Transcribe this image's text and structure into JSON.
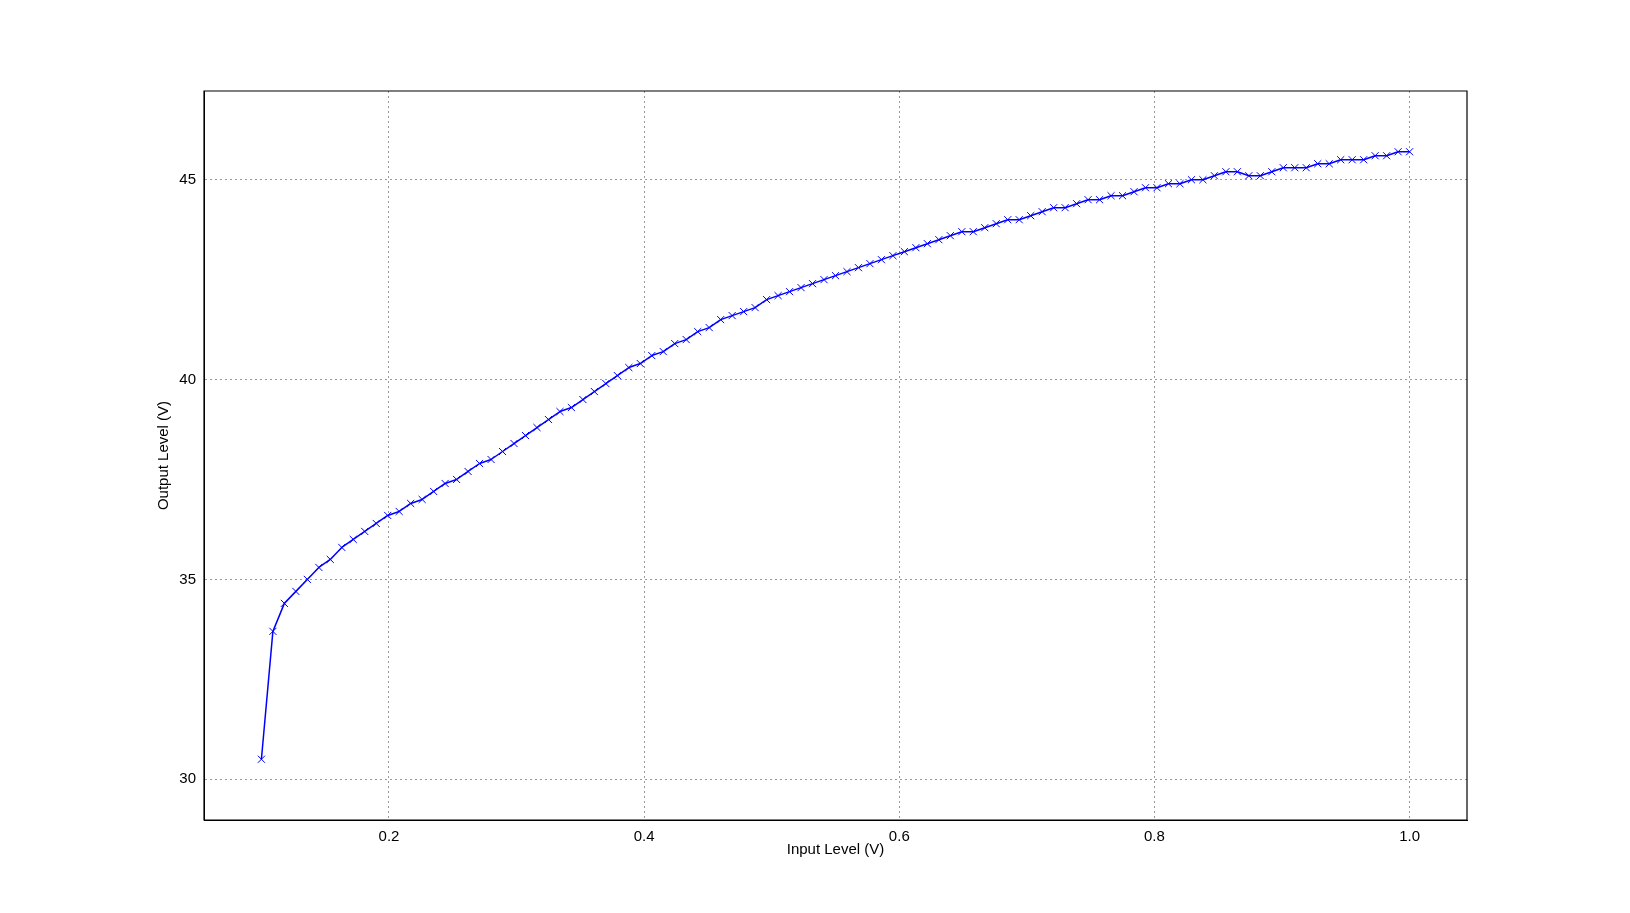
{
  "chart_data": {
    "type": "line",
    "xlabel": "Input Level (V)",
    "ylabel": "Output Level (V)",
    "x": [
      0.1,
      0.109,
      0.118,
      0.127,
      0.136,
      0.145,
      0.154,
      0.163,
      0.172,
      0.181,
      0.19,
      0.199,
      0.208,
      0.217,
      0.226,
      0.235,
      0.244,
      0.253,
      0.262,
      0.271,
      0.28,
      0.289,
      0.298,
      0.307,
      0.316,
      0.325,
      0.334,
      0.343,
      0.352,
      0.361,
      0.37,
      0.379,
      0.388,
      0.397,
      0.406,
      0.415,
      0.424,
      0.433,
      0.442,
      0.451,
      0.46,
      0.469,
      0.478,
      0.487,
      0.496,
      0.505,
      0.514,
      0.523,
      0.532,
      0.541,
      0.55,
      0.559,
      0.568,
      0.577,
      0.586,
      0.595,
      0.604,
      0.613,
      0.622,
      0.631,
      0.64,
      0.649,
      0.658,
      0.667,
      0.676,
      0.685,
      0.694,
      0.703,
      0.712,
      0.721,
      0.73,
      0.739,
      0.748,
      0.757,
      0.766,
      0.775,
      0.784,
      0.793,
      0.802,
      0.811,
      0.82,
      0.829,
      0.838,
      0.847,
      0.856,
      0.865,
      0.874,
      0.883,
      0.892,
      0.901,
      0.91,
      0.919,
      0.928,
      0.937,
      0.946,
      0.955,
      0.964,
      0.973,
      0.982,
      0.991,
      1.0
    ],
    "series": [
      {
        "color": "#0000ff",
        "values": [
          30.5,
          33.7,
          34.4,
          34.7,
          35.0,
          35.3,
          35.5,
          35.8,
          36.0,
          36.2,
          36.4,
          36.6,
          36.7,
          36.9,
          37.0,
          37.2,
          37.4,
          37.5,
          37.7,
          37.9,
          38.0,
          38.2,
          38.4,
          38.6,
          38.8,
          39.0,
          39.2,
          39.3,
          39.5,
          39.7,
          39.9,
          40.1,
          40.3,
          40.4,
          40.6,
          40.7,
          40.9,
          41.0,
          41.2,
          41.3,
          41.5,
          41.6,
          41.7,
          41.8,
          42.0,
          42.1,
          42.2,
          42.3,
          42.4,
          42.5,
          42.6,
          42.7,
          42.8,
          42.9,
          43.0,
          43.1,
          43.2,
          43.3,
          43.4,
          43.5,
          43.6,
          43.7,
          43.7,
          43.8,
          43.9,
          44.0,
          44.0,
          44.1,
          44.2,
          44.3,
          44.3,
          44.4,
          44.5,
          44.5,
          44.6,
          44.6,
          44.7,
          44.8,
          44.8,
          44.9,
          44.9,
          45.0,
          45.0,
          45.1,
          45.2,
          45.2,
          45.1,
          45.1,
          45.2,
          45.3,
          45.3,
          45.3,
          45.4,
          45.4,
          45.5,
          45.5,
          45.5,
          45.6,
          45.6,
          45.7,
          45.7
        ]
      }
    ],
    "xlim": [
      0.055,
      1.045
    ],
    "ylim": [
      28.98,
      47.22
    ],
    "xticks": [
      0.2,
      0.4,
      0.6,
      0.8,
      {
        "value": 1,
        "label": "1.0"
      }
    ],
    "yticks": [
      30,
      35,
      40,
      45
    ],
    "grid": true,
    "marker": "cross",
    "line_style": "solid"
  }
}
